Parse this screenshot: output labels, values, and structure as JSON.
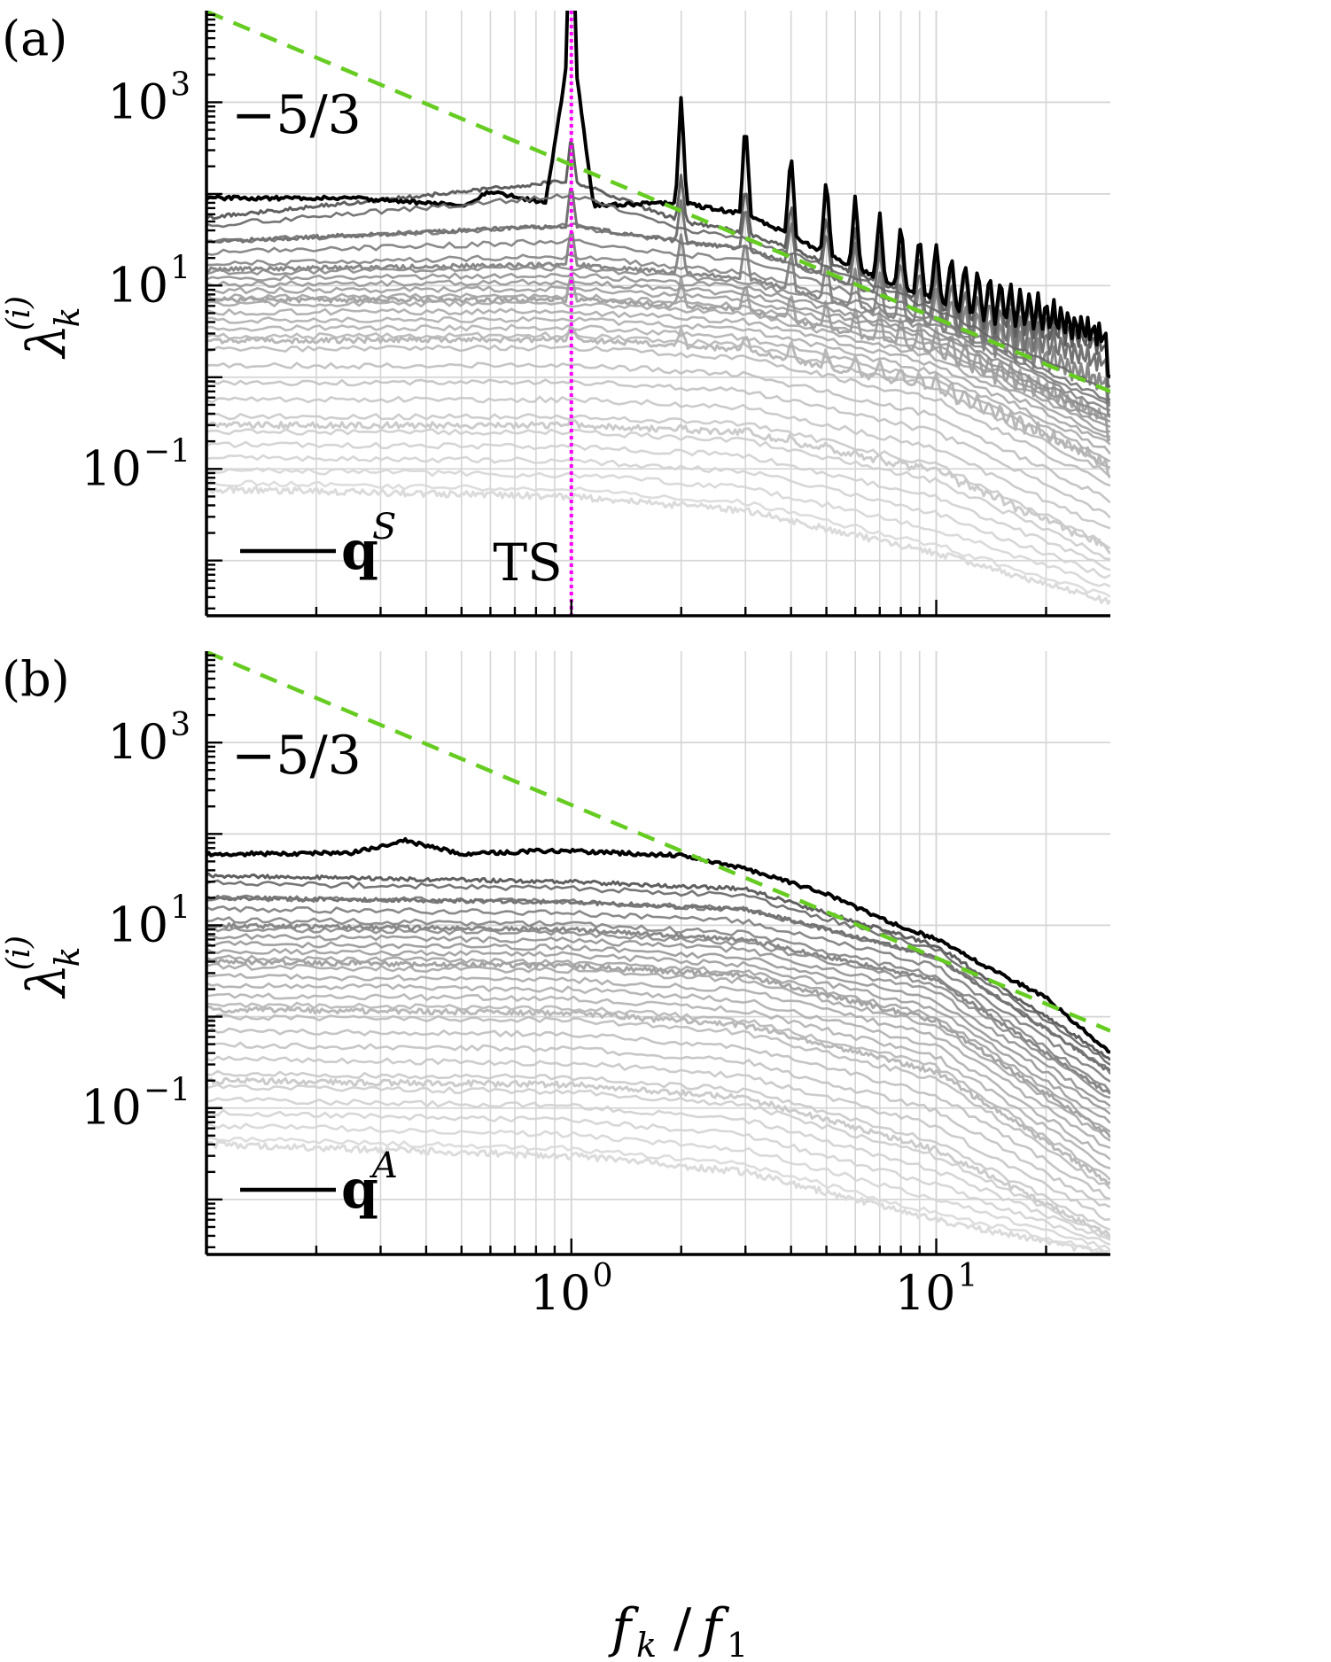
{
  "colors": {
    "background": "#ffffff",
    "axis": "#000000",
    "grid": "#d6d6d6",
    "leading_mode": "#000000",
    "sub_mode_dark": "#4a4a4a",
    "sub_mode_light": "#dcdcdc",
    "slope_line": "#66cc22",
    "ts_line": "#ff00ff"
  },
  "chart_data": [
    {
      "type": "line",
      "panel_label": "(a)",
      "xlabel": "f_k / f_1",
      "ylabel": "λ_k^(i)",
      "x_scale": "log",
      "y_scale": "log",
      "xlim": [
        0.1,
        30
      ],
      "ylim": [
        0.0025,
        10000
      ],
      "x_ticks": [
        1,
        10
      ],
      "x_tick_labels": [
        "10^0",
        "10^1"
      ],
      "y_ticks": [
        0.1,
        10,
        1000
      ],
      "y_tick_labels": [
        "10^-1",
        "10^1",
        "10^3"
      ],
      "grid": true,
      "slope_annotation": "−5/3",
      "legend": {
        "position": "bottom-left",
        "label": "q^S"
      },
      "markers": [
        {
          "x": 1,
          "label": "TS"
        }
      ],
      "harmonic_peaks_at": [
        1,
        2,
        3,
        4,
        5,
        6,
        7,
        8,
        9,
        10,
        11,
        12,
        13,
        14,
        15,
        16,
        17,
        18,
        19,
        20,
        21,
        22,
        23,
        24,
        25,
        26,
        27,
        28,
        29
      ],
      "reference_line": {
        "slope": -1.6667,
        "x": [
          0.1,
          30
        ],
        "y": [
          9800,
          0.7
        ]
      },
      "series": [
        {
          "name": "q^S",
          "rank": 1,
          "x": [
            0.1,
            0.25,
            0.5,
            0.6,
            0.85,
            1.0,
            1.15,
            2.0,
            3.0,
            4.0,
            5.0,
            7.0,
            10.0,
            20.0,
            30.0
          ],
          "y": [
            90,
            90,
            75,
            105,
            80,
            5500,
            75,
            80,
            60,
            35,
            22,
            12,
            7,
            2.1,
            1.0
          ]
        },
        {
          "rank": 2,
          "x": [
            0.1,
            1.0,
            2.0,
            3.0,
            5.0,
            10.0,
            30.0
          ],
          "y": [
            55,
            140,
            50,
            38,
            18,
            6,
            0.8
          ]
        },
        {
          "rank": 5,
          "x": [
            0.1,
            1.0,
            2.0,
            3.0,
            5.0,
            10.0,
            30.0
          ],
          "y": [
            30,
            45,
            30,
            25,
            13,
            4.5,
            0.55
          ]
        },
        {
          "rank": 10,
          "x": [
            0.1,
            1.0,
            3.0,
            10.0,
            30.0
          ],
          "y": [
            15,
            17,
            12,
            3.5,
            0.38
          ]
        },
        {
          "rank": 20,
          "x": [
            0.1,
            1.0,
            3.0,
            10.0,
            30.0
          ],
          "y": [
            7,
            7,
            5.5,
            1.8,
            0.2
          ]
        },
        {
          "rank": 30,
          "x": [
            0.1,
            1.0,
            3.0,
            10.0,
            30.0
          ],
          "y": [
            2.5,
            2.6,
            2,
            0.7,
            0.08
          ]
        },
        {
          "rank": 40,
          "x": [
            0.1,
            1.0,
            3.0,
            10.0,
            30.0
          ],
          "y": [
            0.3,
            0.3,
            0.25,
            0.09,
            0.012
          ]
        },
        {
          "rank": 50,
          "x": [
            0.1,
            1.0,
            3.0,
            10.0,
            30.0
          ],
          "y": [
            0.06,
            0.05,
            0.035,
            0.012,
            0.0035
          ]
        }
      ]
    },
    {
      "type": "line",
      "panel_label": "(b)",
      "xlabel": "f_k / f_1",
      "ylabel": "λ_k^(i)",
      "x_scale": "log",
      "y_scale": "log",
      "xlim": [
        0.1,
        30
      ],
      "ylim": [
        0.0025,
        10000
      ],
      "x_ticks": [
        1,
        10
      ],
      "x_tick_labels": [
        "10^0",
        "10^1"
      ],
      "y_ticks": [
        0.1,
        10,
        1000
      ],
      "y_tick_labels": [
        "10^-1",
        "10^1",
        "10^3"
      ],
      "grid": true,
      "slope_annotation": "−5/3",
      "legend": {
        "position": "bottom-left",
        "label": "q^A"
      },
      "reference_line": {
        "slope": -1.6667,
        "x": [
          0.1,
          30
        ],
        "y": [
          9800,
          0.7
        ]
      },
      "series": [
        {
          "name": "q^A",
          "rank": 1,
          "x": [
            0.1,
            0.25,
            0.35,
            0.5,
            0.8,
            1.0,
            2.0,
            3.0,
            5.0,
            7.0,
            10.0,
            20.0,
            30.0
          ],
          "y": [
            60,
            62,
            85,
            60,
            65,
            65,
            58,
            42,
            22,
            12,
            7,
            1.6,
            0.4
          ]
        },
        {
          "rank": 2,
          "x": [
            0.1,
            1.0,
            3.0,
            10.0,
            30.0
          ],
          "y": [
            35,
            30,
            25,
            6,
            0.35
          ]
        },
        {
          "rank": 5,
          "x": [
            0.1,
            1.0,
            3.0,
            10.0,
            30.0
          ],
          "y": [
            20,
            18,
            15,
            4.5,
            0.25
          ]
        },
        {
          "rank": 10,
          "x": [
            0.1,
            1.0,
            3.0,
            10.0,
            30.0
          ],
          "y": [
            10,
            9,
            7,
            2.5,
            0.14
          ]
        },
        {
          "rank": 20,
          "x": [
            0.1,
            1.0,
            3.0,
            10.0,
            30.0
          ],
          "y": [
            4,
            3.6,
            2.8,
            0.9,
            0.05
          ]
        },
        {
          "rank": 30,
          "x": [
            0.1,
            1.0,
            3.0,
            10.0,
            30.0
          ],
          "y": [
            1.2,
            1.1,
            0.8,
            0.25,
            0.015
          ]
        },
        {
          "rank": 40,
          "x": [
            0.1,
            1.0,
            3.0,
            10.0,
            30.0
          ],
          "y": [
            0.2,
            0.18,
            0.13,
            0.035,
            0.004
          ]
        },
        {
          "rank": 50,
          "x": [
            0.1,
            1.0,
            3.0,
            10.0,
            30.0
          ],
          "y": [
            0.04,
            0.03,
            0.02,
            0.006,
            0.0025
          ]
        }
      ]
    }
  ]
}
